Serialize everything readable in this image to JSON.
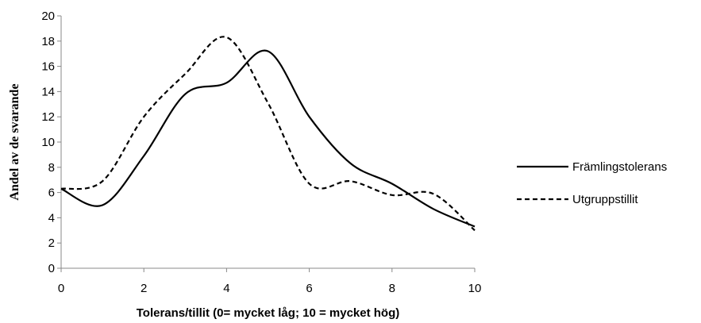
{
  "chart_data": {
    "type": "line",
    "xlabel": "Tolerans/tillit (0= mycket låg; 10 = mycket hög)",
    "ylabel": "Andel av de svarande",
    "xlim": [
      0,
      10
    ],
    "ylim": [
      0,
      20
    ],
    "xticks": [
      "0",
      "2",
      "4",
      "6",
      "8",
      "10"
    ],
    "yticks": [
      "0",
      "2",
      "4",
      "6",
      "8",
      "10",
      "12",
      "14",
      "16",
      "18",
      "20"
    ],
    "legend_position": "right",
    "x": [
      0,
      1,
      2,
      3,
      4,
      5,
      6,
      7,
      8,
      9,
      10
    ],
    "series": [
      {
        "name": "Främlingstolerans",
        "style": "solid",
        "color": "#000000",
        "values": [
          6.3,
          5.0,
          8.9,
          13.8,
          14.7,
          17.2,
          12.0,
          8.3,
          6.7,
          4.7,
          3.3
        ]
      },
      {
        "name": "Utgruppstillit",
        "style": "dashed",
        "color": "#000000",
        "values": [
          6.3,
          6.9,
          12.0,
          15.4,
          18.3,
          13.1,
          6.7,
          6.9,
          5.8,
          5.9,
          3.0
        ]
      }
    ]
  }
}
